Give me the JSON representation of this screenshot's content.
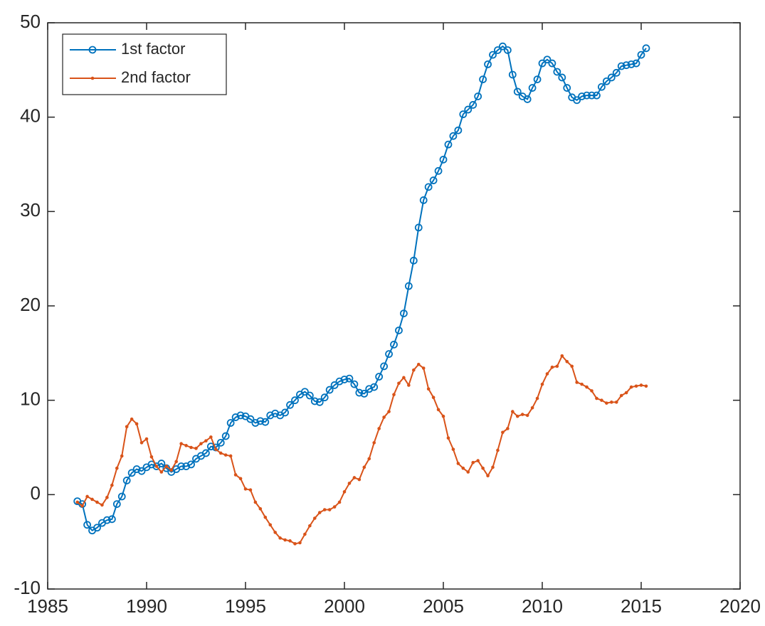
{
  "chart_data": {
    "type": "line",
    "x": [
      1986.5,
      1986.75,
      1987,
      1987.25,
      1987.5,
      1987.75,
      1988,
      1988.25,
      1988.5,
      1988.75,
      1989,
      1989.25,
      1989.5,
      1989.75,
      1990,
      1990.25,
      1990.5,
      1990.75,
      1991,
      1991.25,
      1991.5,
      1991.75,
      1992,
      1992.25,
      1992.5,
      1992.75,
      1993,
      1993.25,
      1993.5,
      1993.75,
      1994,
      1994.25,
      1994.5,
      1994.75,
      1995,
      1995.25,
      1995.5,
      1995.75,
      1996,
      1996.25,
      1996.5,
      1996.75,
      1997,
      1997.25,
      1997.5,
      1997.75,
      1998,
      1998.25,
      1998.5,
      1998.75,
      1999,
      1999.25,
      1999.5,
      1999.75,
      2000,
      2000.25,
      2000.5,
      2000.75,
      2001,
      2001.25,
      2001.5,
      2001.75,
      2002,
      2002.25,
      2002.5,
      2002.75,
      2003,
      2003.25,
      2003.5,
      2003.75,
      2004,
      2004.25,
      2004.5,
      2004.75,
      2005,
      2005.25,
      2005.5,
      2005.75,
      2006,
      2006.25,
      2006.5,
      2006.75,
      2007,
      2007.25,
      2007.5,
      2007.75,
      2008,
      2008.25,
      2008.5,
      2008.75,
      2009,
      2009.25,
      2009.5,
      2009.75,
      2010,
      2010.25,
      2010.5,
      2010.75,
      2011,
      2011.25,
      2011.5,
      2011.75,
      2012,
      2012.25,
      2012.5,
      2012.75,
      2013,
      2013.25,
      2013.5,
      2013.75,
      2014,
      2014.25,
      2014.5,
      2014.75,
      2015,
      2015.25
    ],
    "series": [
      {
        "name": "1st factor",
        "color": "#0072bd",
        "marker": "circle",
        "values": [
          -0.7,
          -1.0,
          -3.2,
          -3.8,
          -3.5,
          -3.0,
          -2.7,
          -2.6,
          -1.0,
          -0.2,
          1.5,
          2.3,
          2.7,
          2.5,
          2.9,
          3.2,
          3.0,
          3.3,
          2.8,
          2.4,
          2.7,
          3.0,
          3.0,
          3.2,
          3.8,
          4.1,
          4.4,
          5.1,
          5.0,
          5.5,
          6.2,
          7.6,
          8.2,
          8.4,
          8.3,
          8.0,
          7.6,
          7.8,
          7.7,
          8.4,
          8.6,
          8.4,
          8.7,
          9.5,
          10.0,
          10.6,
          10.9,
          10.5,
          9.9,
          9.8,
          10.3,
          11.1,
          11.6,
          12.0,
          12.2,
          12.3,
          11.7,
          10.8,
          10.7,
          11.2,
          11.4,
          12.5,
          13.6,
          14.9,
          15.9,
          17.4,
          19.2,
          22.1,
          24.8,
          28.3,
          31.2,
          32.6,
          33.3,
          34.3,
          35.5,
          37.1,
          38.0,
          38.6,
          40.3,
          40.8,
          41.3,
          42.2,
          44.0,
          45.6,
          46.6,
          47.1,
          47.5,
          47.1,
          44.5,
          42.7,
          42.2,
          41.9,
          43.1,
          44.0,
          45.7,
          46.1,
          45.7,
          44.8,
          44.2,
          43.1,
          42.1,
          41.8,
          42.2,
          42.3,
          42.3,
          42.3,
          43.2,
          43.8,
          44.2,
          44.7,
          45.4,
          45.5,
          45.6,
          45.7,
          46.6,
          47.3
        ]
      },
      {
        "name": "2nd factor",
        "color": "#d95319",
        "marker": "dot",
        "values": [
          -0.8,
          -1.2,
          -0.2,
          -0.5,
          -0.8,
          -1.1,
          -0.3,
          1.0,
          2.8,
          4.1,
          7.2,
          8.0,
          7.5,
          5.5,
          5.9,
          4.0,
          3.0,
          2.4,
          3.0,
          2.6,
          3.5,
          5.4,
          5.2,
          5.0,
          4.9,
          5.4,
          5.7,
          6.1,
          4.8,
          4.4,
          4.2,
          4.1,
          2.1,
          1.7,
          0.6,
          0.5,
          -0.8,
          -1.5,
          -2.4,
          -3.2,
          -4.0,
          -4.6,
          -4.8,
          -4.9,
          -5.2,
          -5.1,
          -4.2,
          -3.3,
          -2.5,
          -1.9,
          -1.6,
          -1.6,
          -1.3,
          -0.8,
          0.3,
          1.2,
          1.8,
          1.6,
          2.9,
          3.8,
          5.5,
          7.0,
          8.2,
          8.8,
          10.6,
          11.8,
          12.4,
          11.6,
          13.2,
          13.8,
          13.4,
          11.2,
          10.3,
          9.0,
          8.3,
          6.0,
          4.8,
          3.3,
          2.8,
          2.4,
          3.4,
          3.6,
          2.8,
          2.0,
          2.9,
          4.7,
          6.6,
          7.0,
          8.8,
          8.3,
          8.5,
          8.4,
          9.2,
          10.2,
          11.7,
          12.8,
          13.5,
          13.6,
          14.7,
          14.1,
          13.6,
          11.9,
          11.7,
          11.4,
          11.0,
          10.2,
          10.0,
          9.7,
          9.8,
          9.8,
          10.5,
          10.8,
          11.4,
          11.5,
          11.6,
          11.5
        ]
      }
    ],
    "xlim": [
      1985,
      2020
    ],
    "xticks": [
      1985,
      1990,
      1995,
      2000,
      2005,
      2010,
      2015,
      2020
    ],
    "ylim": [
      -10,
      50
    ],
    "yticks": [
      -10,
      0,
      10,
      20,
      30,
      40,
      50
    ],
    "legend": "upper left",
    "grid": false
  }
}
